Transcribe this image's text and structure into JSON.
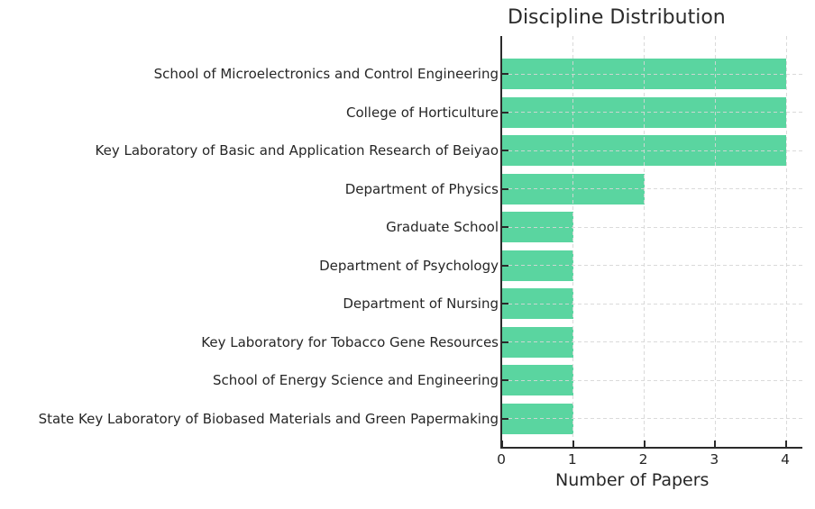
{
  "chart_data": {
    "type": "bar",
    "orientation": "horizontal",
    "title": "Discipline Distribution",
    "xlabel": "Number of Papers",
    "ylabel": "",
    "categories": [
      "School of Microelectronics and Control Engineering",
      "College of Horticulture",
      "Key Laboratory of Basic and Application Research of Beiyao",
      "Department of Physics",
      "Graduate School",
      "Department of Psychology",
      "Department of Nursing",
      "Key Laboratory for Tobacco Gene Resources",
      "School of Energy Science and Engineering",
      "State Key Laboratory of Biobased Materials and Green Papermaking"
    ],
    "values": [
      4,
      4,
      4,
      2,
      1,
      1,
      1,
      1,
      1,
      1
    ],
    "xticks": [
      "0",
      "1",
      "2",
      "3",
      "4"
    ],
    "xtick_values": [
      0,
      1,
      2,
      3,
      4
    ],
    "xlim": [
      0,
      4.25
    ],
    "grid": "dashed, both axes, drawn over bars",
    "legend": "none",
    "colors": {
      "bar": "#5ad5a0",
      "grid": "#d6d6d6",
      "axis": "#2b2b2b",
      "text": "#262626",
      "background": "#ffffff"
    }
  }
}
